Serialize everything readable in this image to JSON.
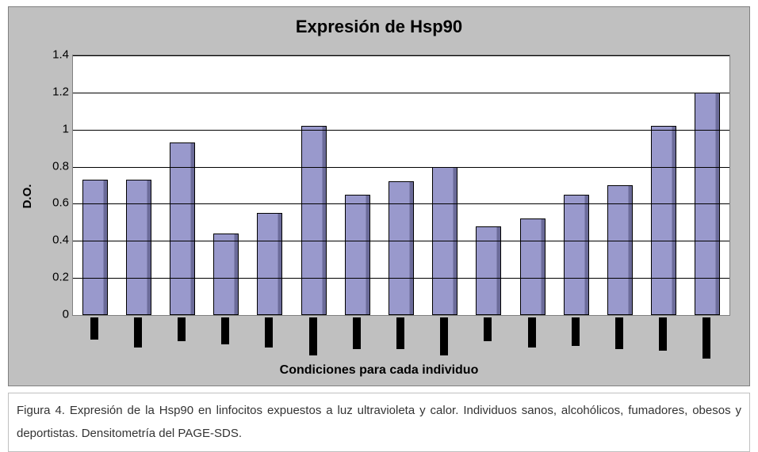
{
  "chart": {
    "type": "bar",
    "title": "Expresión de Hsp90",
    "title_fontsize": 22,
    "ylabel": "D.O.",
    "ylabel_fontsize": 15,
    "xlabel": "Condiciones para cada individuo",
    "xlabel_fontsize": 16,
    "n_bars": 15,
    "values": [
      0.73,
      0.73,
      0.93,
      0.44,
      0.55,
      1.02,
      0.65,
      0.72,
      0.8,
      0.48,
      0.52,
      0.65,
      0.7,
      1.02,
      1.2
    ],
    "bar_color": "#9999cc",
    "ylim": [
      0,
      1.4
    ],
    "ytick_step": 0.2,
    "ytick_labels": [
      "0",
      "0.2",
      "0.4",
      "0.6",
      "0.8",
      "1",
      "1.2",
      "1.4"
    ],
    "tick_fontsize": 15,
    "outer_background": "#c0c0c0",
    "plot_background": "#ffffff",
    "grid_color": "#000000",
    "x_marker_heights": [
      28,
      38,
      30,
      34,
      38,
      48,
      40,
      40,
      48,
      30,
      38,
      36,
      40,
      42,
      52
    ]
  },
  "caption": {
    "text": "Figura 4. Expresión de la Hsp90 en linfocitos expuestos a luz ultravioleta y calor. Individuos sanos, alcohólicos, fumadores, obesos y deportistas. Densitometría del PAGE-SDS.",
    "fontsize": 15
  }
}
